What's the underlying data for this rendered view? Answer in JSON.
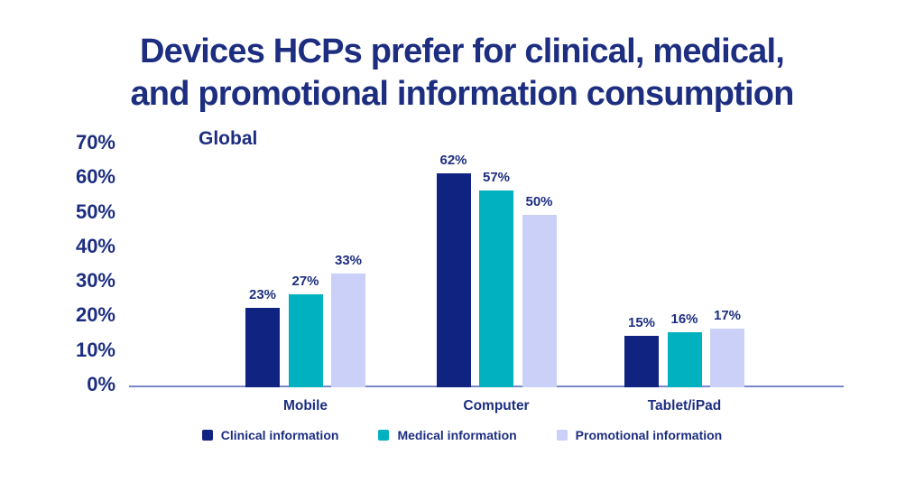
{
  "page": {
    "background": "#ffffff",
    "text_color": "#1d2e80"
  },
  "title": {
    "line1": "Devices HCPs prefer for clinical, medical,",
    "line2": "and promotional information consumption"
  },
  "region_label": "Global",
  "chart_data": {
    "type": "bar",
    "title": "Devices HCPs prefer for clinical, medical, and promotional information consumption",
    "subtitle": "Global",
    "categories": [
      "Mobile",
      "Computer",
      "Tablet/iPad"
    ],
    "series": [
      {
        "name": "Clinical information",
        "color": "#112380",
        "values": [
          23,
          62,
          15
        ]
      },
      {
        "name": "Medical information",
        "color": "#02b1c0",
        "values": [
          27,
          57,
          16
        ]
      },
      {
        "name": "Promotional information",
        "color": "#cad0f8",
        "values": [
          33,
          50,
          17
        ]
      }
    ],
    "value_suffix": "%",
    "data_labels": true,
    "xlabel": "",
    "ylabel": "",
    "ylim": [
      0,
      70
    ],
    "y_tick_step": 10,
    "y_ticks": [
      "0%",
      "10%",
      "20%",
      "30%",
      "40%",
      "50%",
      "60%",
      "70%"
    ],
    "grid": false,
    "legend_position": "bottom",
    "axis_line_color": "#7b87c7",
    "label_color": "#1d2e80"
  }
}
